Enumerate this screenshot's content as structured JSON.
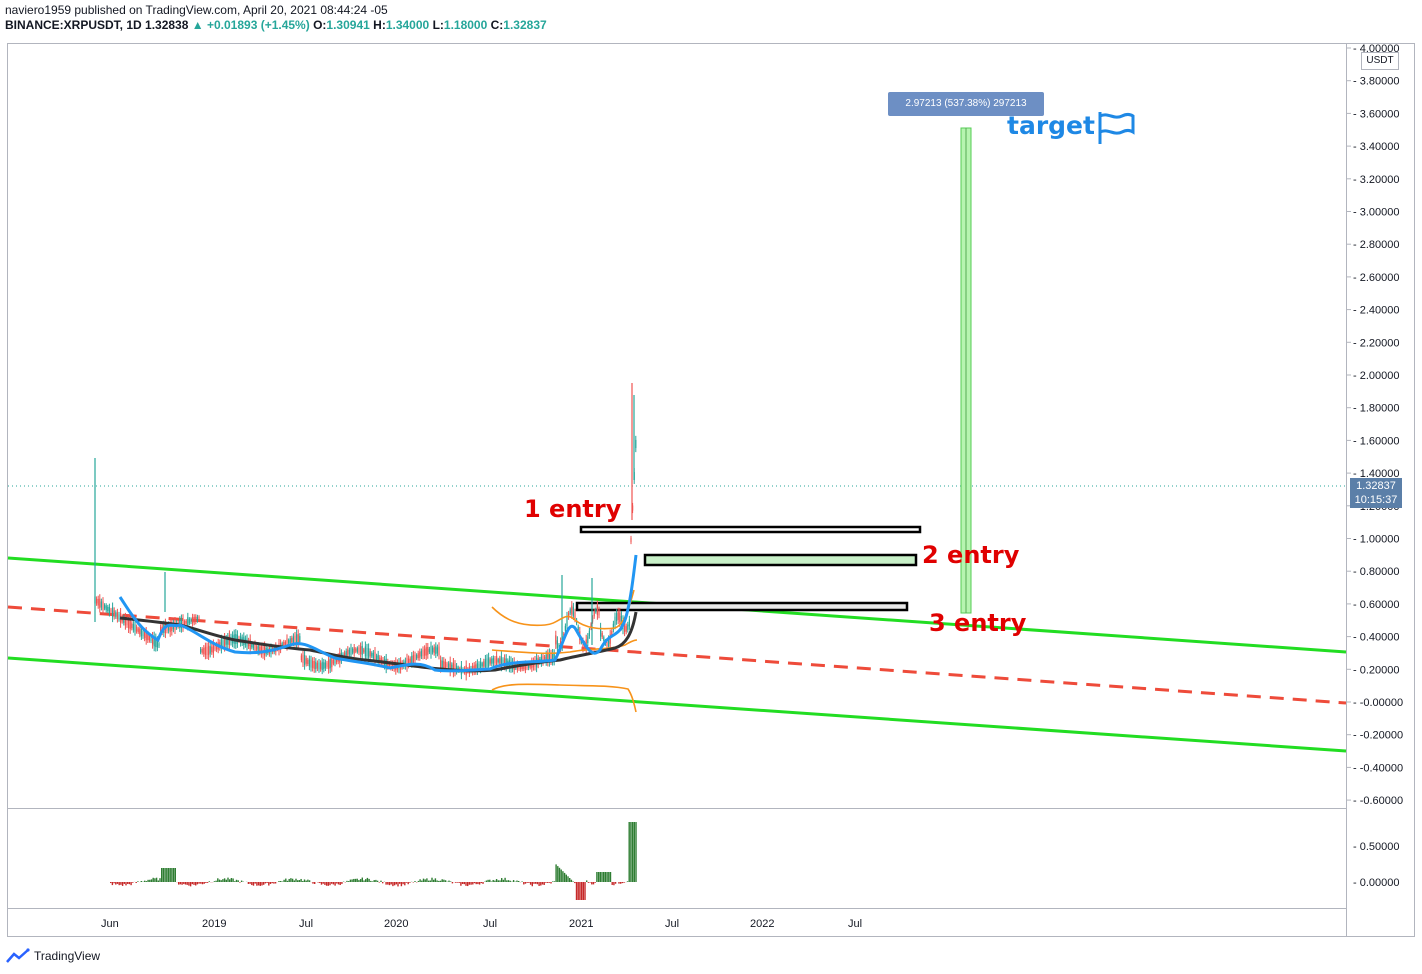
{
  "header": {
    "publisher": "naviero1959 published on TradingView.com, April 20, 2021 08:44:24 -05",
    "symbol": "BINANCE:XRPUSDT, 1D",
    "last": "1.32838",
    "change": "▲ +0.01893 (+1.45%)",
    "o_label": "O:",
    "o": "1.30941",
    "h_label": "H:",
    "h": "1.34000",
    "l_label": "L:",
    "l": "1.18000",
    "c_label": "C:",
    "c": "1.32837"
  },
  "price_axis": {
    "unit": "USDT",
    "ticks": [
      "4.00000",
      "3.80000",
      "3.60000",
      "3.40000",
      "3.20000",
      "3.00000",
      "2.80000",
      "2.60000",
      "2.40000",
      "2.20000",
      "2.00000",
      "1.80000",
      "1.60000",
      "1.40000",
      "1.20000",
      "1.00000",
      "0.80000",
      "0.60000",
      "0.40000",
      "0.20000",
      "-0.00000",
      "-0.20000",
      "-0.40000",
      "-0.60000"
    ],
    "last_price": "1.32837",
    "countdown": "10:15:37"
  },
  "osc_axis": {
    "ticks": [
      "0.50000",
      "0.00000"
    ]
  },
  "time_axis": {
    "labels": [
      "Jun",
      "2019",
      "Jul",
      "2020",
      "Jul",
      "2021",
      "Jul",
      "2022",
      "Jul"
    ]
  },
  "measure": {
    "label": "2.97213 (537.38%) 297213"
  },
  "annotations": {
    "entry1": "1 entry",
    "entry2": "2 entry",
    "entry3": "3 entry",
    "target": "target"
  },
  "colors": {
    "channel": "#22dd22",
    "midline": "#ee4b3a",
    "ema_fast": "#2196f3",
    "ema_slow": "#333333",
    "bands": "#f7931a",
    "measure_fill": "#b6f5b0",
    "up": "#26a69a",
    "down": "#ef5350"
  },
  "footer": {
    "brand": "TradingView"
  }
}
